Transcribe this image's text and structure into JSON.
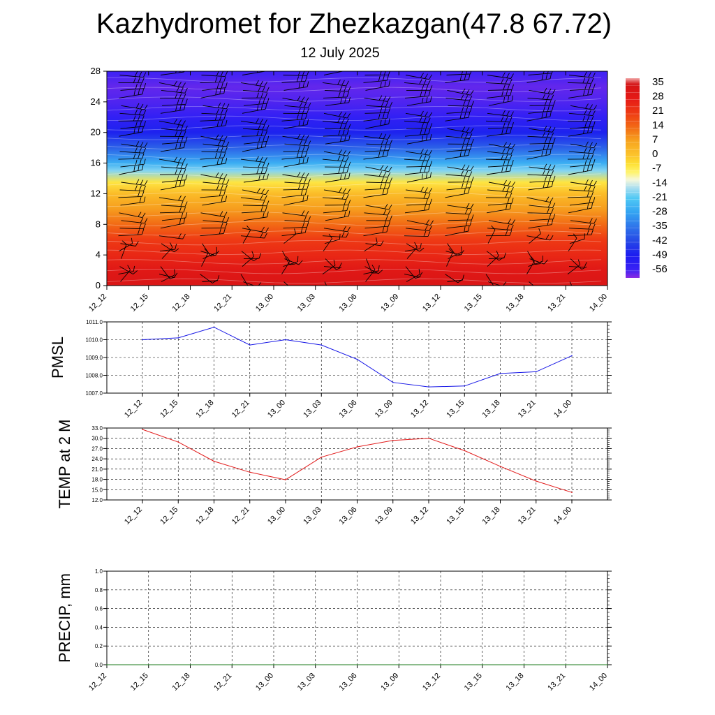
{
  "title": "Kazhydromet for Zhezkazgan(47.8 67.72)",
  "subtitle": "12 July 2025",
  "colors": {
    "pmsl_line": "#1515e6",
    "temp_line": "#e21b1b",
    "precip_line": "#1a7a1a",
    "grid": "#000000",
    "wind_barb": "#000000"
  },
  "chart_data": [
    {
      "type": "heatmap",
      "title": "",
      "description_of_field": "air temperature by model level with wind barbs",
      "xlabel": "",
      "ylabel": "",
      "x_ticks": [
        "12_12",
        "12_15",
        "12_18",
        "12_21",
        "13_00",
        "13_03",
        "13_06",
        "13_09",
        "13_12",
        "13_15",
        "13_18",
        "13_21",
        "14_00"
      ],
      "y_ticks": [
        0,
        4,
        8,
        12,
        16,
        20,
        24,
        28
      ],
      "ylim": [
        0,
        28
      ],
      "colorbar_labels": [
        35,
        28,
        21,
        14,
        7,
        0,
        -7,
        -14,
        -21,
        -28,
        -35,
        -42,
        -49,
        -56
      ],
      "colorbar_range": [
        -60,
        38
      ],
      "level_temperature_profile": {
        "levels": [
          0,
          2,
          4,
          6,
          8,
          10,
          12,
          13.5,
          15,
          16,
          18,
          20,
          22,
          24,
          26,
          28
        ],
        "temperature": [
          33,
          30,
          25,
          21,
          14,
          8,
          2,
          -5,
          -18,
          -26,
          -38,
          -48,
          -54,
          -57,
          -58,
          -56
        ]
      },
      "wind_barbs": "present"
    },
    {
      "type": "line",
      "title": "",
      "xlabel": "",
      "ylabel": "PMSL",
      "x": [
        "12_12",
        "12_15",
        "12_18",
        "12_21",
        "13_00",
        "13_03",
        "13_06",
        "13_09",
        "13_12",
        "13_15",
        "13_18",
        "13_21",
        "14_00"
      ],
      "ylim": [
        1007.0,
        1011.0
      ],
      "y_ticks": [
        "1007.0",
        "1008.0",
        "1009.0",
        "1010.0",
        "1011.0"
      ],
      "series": [
        {
          "values": [
            1010.0,
            1010.1,
            1010.7,
            1009.7,
            1010.0,
            1009.7,
            1008.9,
            1007.6,
            1007.35,
            1007.4,
            1008.1,
            1008.2,
            1009.1
          ]
        }
      ],
      "grid": true
    },
    {
      "type": "line",
      "title": "",
      "xlabel": "",
      "ylabel": "TEMP at 2 M",
      "x": [
        "12_12",
        "12_15",
        "12_18",
        "12_21",
        "13_00",
        "13_03",
        "13_06",
        "13_09",
        "13_12",
        "13_15",
        "13_18",
        "13_21",
        "14_00"
      ],
      "ylim": [
        12.0,
        33.0
      ],
      "y_ticks": [
        "12.0",
        "15.0",
        "18.0",
        "21.0",
        "24.0",
        "27.0",
        "30.0",
        "33.0"
      ],
      "series": [
        {
          "values": [
            32.6,
            28.9,
            23.3,
            20.1,
            17.9,
            24.5,
            27.5,
            29.4,
            30.0,
            26.4,
            21.8,
            17.5,
            14.2
          ]
        }
      ],
      "grid": true
    },
    {
      "type": "line",
      "title": "",
      "xlabel": "",
      "ylabel": "PRECIP, mm",
      "x": [
        "12_12",
        "12_15",
        "12_18",
        "12_21",
        "13_00",
        "13_03",
        "13_06",
        "13_09",
        "13_12",
        "13_15",
        "13_18",
        "13_21",
        "14_00"
      ],
      "ylim": [
        0.0,
        1.0
      ],
      "y_ticks": [
        "0.0",
        "0.2",
        "0.4",
        "0.6",
        "0.8",
        "1.0"
      ],
      "series": [
        {
          "values": [
            0,
            0,
            0,
            0,
            0,
            0,
            0,
            0,
            0,
            0,
            0,
            0,
            0
          ]
        }
      ],
      "grid": true
    }
  ]
}
